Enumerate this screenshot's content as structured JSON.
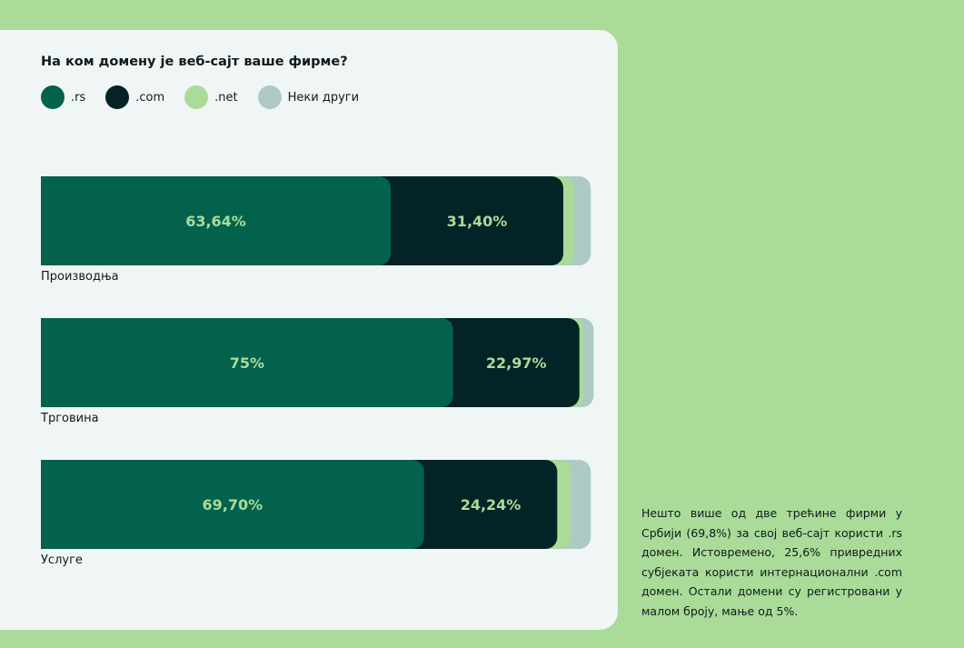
{
  "colors": {
    "page_background": "#aadb99",
    "card_background": "#f0f5f5",
    "value_label": "#aadb99"
  },
  "chart_data": {
    "type": "bar",
    "orientation": "horizontal",
    "stacked": true,
    "title": "На ком домену је веб-сајт ваше фирме?",
    "legend_position": "top-left",
    "categories": [
      "Производња",
      "Трговина",
      "Услуге"
    ],
    "series": [
      {
        "name": ".rs",
        "color": "#03624c",
        "values": [
          63.64,
          75,
          69.7
        ],
        "labels": [
          "63,64%",
          "75%",
          "69,70%"
        ]
      },
      {
        "name": ".com",
        "color": "#032327",
        "values": [
          31.4,
          22.97,
          24.24
        ],
        "labels": [
          "31,40%",
          "22,97%",
          "24,24%"
        ]
      },
      {
        "name": ".net",
        "color": "#aadb99",
        "values": [
          2.0,
          0.8,
          2.5
        ],
        "labels": [
          "",
          "",
          ""
        ]
      },
      {
        "name": "Неки други",
        "color": "#adcbc4",
        "values": [
          3.0,
          1.8,
          3.6
        ],
        "labels": [
          "",
          "",
          ""
        ]
      }
    ],
    "xlim": [
      0,
      100
    ]
  },
  "note": "Нешто више од две трећине фирми у Србији (69,8%) за свој веб-сајт користи .rs домен. Истовремено, 25,6% привредних субјеката користи интернационални .com домен. Остали домени су регистровани у малом броју, мање од 5%."
}
